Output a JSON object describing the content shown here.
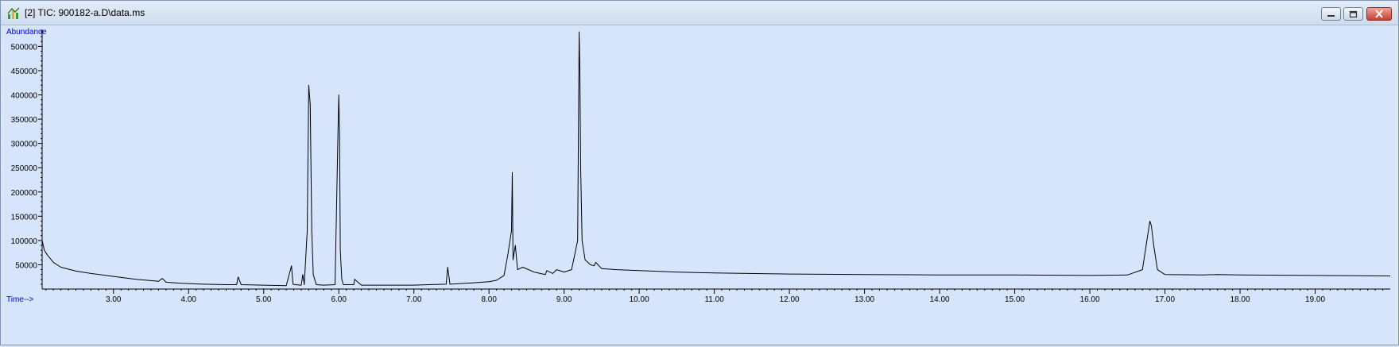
{
  "window": {
    "title": "[2] TIC: 900182-a.D\\data.ms",
    "icon": "chromatogram-app-icon",
    "controls": [
      "minimize-icon",
      "restore-icon",
      "close-icon"
    ]
  },
  "colors": {
    "plot_background": "#d6e5fc",
    "trace": "#000000",
    "axis_label": "#0000cc"
  },
  "chart_data": {
    "type": "line",
    "xlabel": "Time-->",
    "ylabel": "Abundance",
    "xlim": [
      2.05,
      20.0
    ],
    "ylim": [
      0,
      535000
    ],
    "xticks": [
      3.0,
      4.0,
      5.0,
      6.0,
      7.0,
      8.0,
      9.0,
      10.0,
      11.0,
      12.0,
      13.0,
      14.0,
      15.0,
      16.0,
      17.0,
      18.0,
      19.0
    ],
    "xtick_labels": [
      "3.00",
      "4.00",
      "5.00",
      "6.00",
      "7.00",
      "8.00",
      "9.00",
      "10.00",
      "11.00",
      "12.00",
      "13.00",
      "14.00",
      "15.00",
      "16.00",
      "17.00",
      "18.00",
      "19.00"
    ],
    "yticks": [
      50000,
      100000,
      150000,
      200000,
      250000,
      300000,
      350000,
      400000,
      450000,
      500000
    ],
    "ytick_labels": [
      "50000",
      "100000",
      "150000",
      "200000",
      "250000",
      "300000",
      "350000",
      "400000",
      "450000",
      "500000"
    ],
    "grid": false,
    "series": [
      {
        "x": [
          2.05,
          2.08,
          2.12,
          2.2,
          2.3,
          2.5,
          2.7,
          3.0,
          3.3,
          3.6,
          3.65,
          3.7,
          3.9,
          4.2,
          4.5,
          4.64,
          4.66,
          4.7,
          5.0,
          5.3,
          5.37,
          5.39,
          5.42,
          5.5,
          5.52,
          5.54,
          5.58,
          5.6,
          5.62,
          5.64,
          5.66,
          5.7,
          5.8,
          5.95,
          5.99,
          6.0,
          6.01,
          6.02,
          6.04,
          6.06,
          6.1,
          6.2,
          6.21,
          6.3,
          6.5,
          6.8,
          7.0,
          7.2,
          7.43,
          7.45,
          7.48,
          7.6,
          7.8,
          8.0,
          8.1,
          8.2,
          8.25,
          8.3,
          8.31,
          8.32,
          8.35,
          8.38,
          8.45,
          8.6,
          8.75,
          8.77,
          8.85,
          8.9,
          9.0,
          9.1,
          9.18,
          9.2,
          9.21,
          9.22,
          9.24,
          9.28,
          9.35,
          9.4,
          9.42,
          9.5,
          9.7,
          10.0,
          10.5,
          11.0,
          12.0,
          13.0,
          14.0,
          15.0,
          16.0,
          16.5,
          16.7,
          16.75,
          16.8,
          16.82,
          16.85,
          16.9,
          17.0,
          17.5,
          17.7,
          18.0,
          19.0,
          20.0
        ],
        "y": [
          100000,
          80000,
          70000,
          55000,
          45000,
          37000,
          32000,
          26000,
          20000,
          16000,
          22000,
          14000,
          12000,
          10000,
          9000,
          9000,
          25000,
          9000,
          8000,
          7000,
          48000,
          10000,
          9000,
          8000,
          30000,
          9000,
          120000,
          420000,
          380000,
          120000,
          30000,
          9000,
          8000,
          9000,
          330000,
          400000,
          320000,
          80000,
          20000,
          9000,
          9000,
          9000,
          20000,
          8000,
          8000,
          8000,
          8000,
          9000,
          10000,
          45000,
          10000,
          11000,
          13000,
          15000,
          18000,
          28000,
          70000,
          120000,
          240000,
          60000,
          90000,
          40000,
          45000,
          35000,
          30000,
          38000,
          32000,
          40000,
          35000,
          40000,
          100000,
          530000,
          450000,
          250000,
          100000,
          60000,
          50000,
          48000,
          55000,
          42000,
          40000,
          38000,
          35000,
          33000,
          31000,
          30000,
          29000,
          29000,
          28000,
          29000,
          40000,
          90000,
          140000,
          130000,
          90000,
          40000,
          30000,
          29000,
          30000,
          29000,
          28000,
          27000
        ]
      }
    ]
  }
}
